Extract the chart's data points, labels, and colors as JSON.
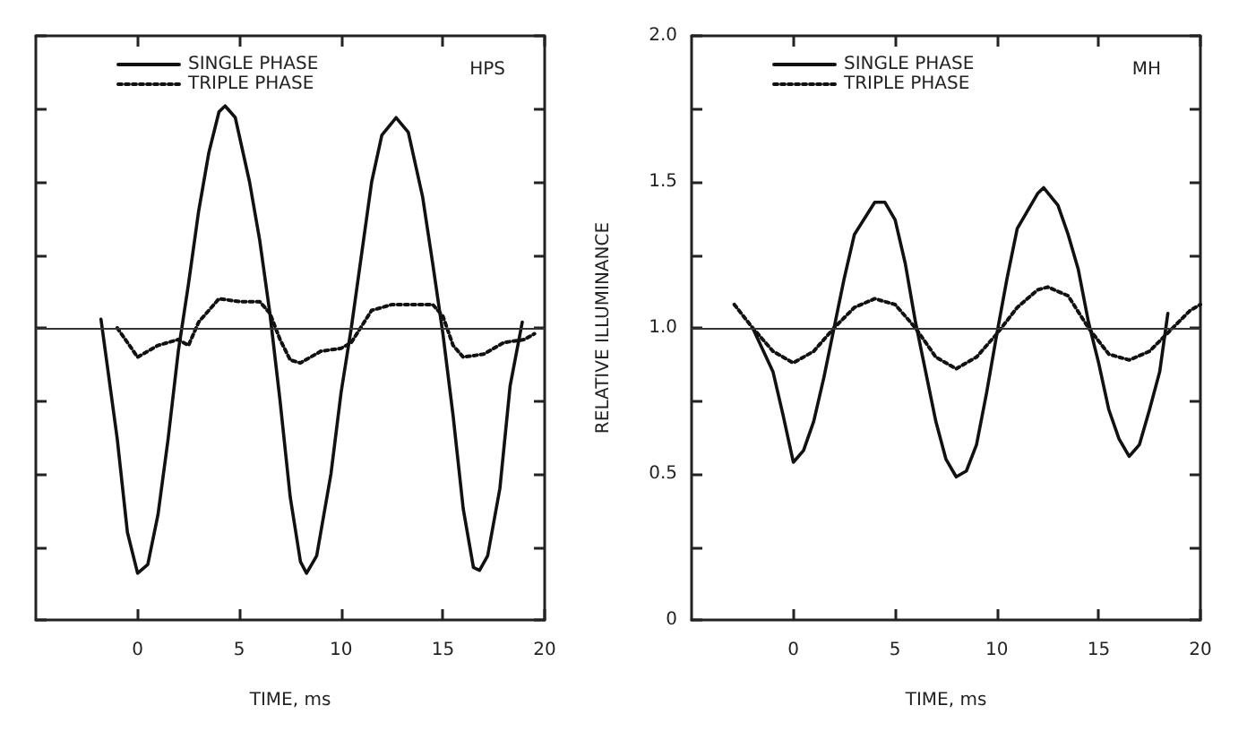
{
  "chart_data": [
    {
      "type": "line",
      "xlabel": "TIME, ms",
      "annotations": [
        "HPS"
      ],
      "xlim": [
        -5,
        20
      ],
      "xticks": [
        0,
        5,
        10,
        15,
        20
      ],
      "ylim": [
        0,
        2
      ],
      "yticks": [
        {
          "value": 0,
          "label": null
        },
        {
          "value": 0.25,
          "label": null
        },
        {
          "value": 0.5,
          "label": null
        },
        {
          "value": 0.75,
          "label": null
        },
        {
          "value": 1,
          "label": null
        },
        {
          "value": 1.25,
          "label": null
        },
        {
          "value": 1.5,
          "label": null
        },
        {
          "value": 1.75,
          "label": null
        },
        {
          "value": 2,
          "label": null
        }
      ],
      "tick_labels": "x",
      "grid": false,
      "legend": "top left",
      "marker": "none",
      "ref_lines": [
        {
          "axis": "y",
          "value": 1,
          "color": "#333333"
        }
      ],
      "series": [
        {
          "name": "SINGLE PHASE",
          "color": "#111111",
          "line_style": "solid",
          "x": [
            -1.8,
            -1,
            -0.5,
            0,
            0.5,
            1,
            1.5,
            2,
            2.5,
            3,
            3.5,
            4,
            4.3,
            4.8,
            5.5,
            6,
            6.5,
            7,
            7.5,
            8,
            8.3,
            8.8,
            9.5,
            10,
            10.5,
            11,
            11.5,
            12,
            12.7,
            13.3,
            14,
            14.5,
            15,
            15.5,
            16,
            16.5,
            16.8,
            17.2,
            17.8,
            18.3,
            18.9
          ],
          "values": [
            1.03,
            0.62,
            0.3,
            0.16,
            0.19,
            0.36,
            0.62,
            0.92,
            1.15,
            1.4,
            1.6,
            1.74,
            1.76,
            1.72,
            1.5,
            1.3,
            1.05,
            0.75,
            0.42,
            0.2,
            0.16,
            0.22,
            0.5,
            0.78,
            1.0,
            1.25,
            1.5,
            1.66,
            1.72,
            1.67,
            1.45,
            1.22,
            0.98,
            0.7,
            0.38,
            0.18,
            0.17,
            0.22,
            0.45,
            0.8,
            1.02
          ]
        },
        {
          "name": "TRIPLE PHASE",
          "color": "#111111",
          "line_style": "dotted",
          "x": [
            -1,
            0,
            1,
            2,
            2.5,
            3,
            4,
            5,
            6,
            6.5,
            7,
            7.5,
            8,
            9,
            10,
            10.5,
            11.5,
            12.5,
            13.5,
            14.5,
            15,
            15.5,
            16,
            17,
            18,
            19,
            19.5
          ],
          "values": [
            1.0,
            0.9,
            0.94,
            0.96,
            0.94,
            1.02,
            1.1,
            1.09,
            1.09,
            1.05,
            0.96,
            0.89,
            0.88,
            0.92,
            0.93,
            0.95,
            1.06,
            1.08,
            1.08,
            1.08,
            1.04,
            0.94,
            0.9,
            0.91,
            0.95,
            0.96,
            0.98
          ]
        }
      ]
    },
    {
      "type": "line",
      "xlabel": "TIME, ms",
      "ylabel": "RELATIVE ILLUMINANCE",
      "annotations": [
        "MH"
      ],
      "xlim": [
        -5,
        20
      ],
      "xticks": [
        0,
        5,
        10,
        15,
        20
      ],
      "ylim": [
        0,
        2
      ],
      "yticks": [
        0,
        {
          "value": 0.25,
          "label": null
        },
        0.5,
        {
          "value": 0.75,
          "label": null
        },
        {
          "value": 1,
          "label": "1.0"
        },
        {
          "value": 1.25,
          "label": null
        },
        1.5,
        {
          "value": 1.75,
          "label": null
        },
        {
          "value": 2,
          "label": "2.0"
        }
      ],
      "grid": false,
      "legend": "top left",
      "marker": "none",
      "ref_lines": [
        {
          "axis": "y",
          "value": 1,
          "color": "#333333"
        }
      ],
      "series": [
        {
          "name": "SINGLE PHASE",
          "color": "#111111",
          "line_style": "solid",
          "x": [
            -2,
            -1,
            -0.5,
            0,
            0.5,
            1,
            1.5,
            2,
            2.5,
            3,
            4,
            4.5,
            5,
            5.5,
            6,
            6.5,
            7,
            7.5,
            8,
            8.5,
            9,
            9.5,
            10,
            10.5,
            11,
            12,
            12.3,
            13,
            13.5,
            14,
            14.5,
            15,
            15.5,
            16,
            16.5,
            17,
            17.5,
            18,
            18.4
          ],
          "values": [
            1.0,
            0.85,
            0.7,
            0.54,
            0.58,
            0.68,
            0.83,
            1.0,
            1.17,
            1.32,
            1.43,
            1.43,
            1.37,
            1.22,
            1.02,
            0.85,
            0.68,
            0.55,
            0.49,
            0.51,
            0.6,
            0.78,
            0.98,
            1.17,
            1.34,
            1.46,
            1.48,
            1.42,
            1.32,
            1.2,
            1.02,
            0.88,
            0.72,
            0.62,
            0.56,
            0.6,
            0.72,
            0.85,
            1.05
          ]
        },
        {
          "name": "TRIPLE PHASE",
          "color": "#111111",
          "line_style": "dotted",
          "x": [
            -2.9,
            -2,
            -1,
            0,
            1,
            2,
            3,
            4,
            5,
            6,
            7,
            8,
            9,
            10,
            11,
            12,
            12.5,
            13.5,
            14.5,
            15.5,
            16.5,
            17.5,
            18.5,
            19.5,
            20
          ],
          "values": [
            1.08,
            1.0,
            0.92,
            0.88,
            0.92,
            1.0,
            1.07,
            1.1,
            1.08,
            1.0,
            0.9,
            0.86,
            0.9,
            0.98,
            1.07,
            1.13,
            1.14,
            1.11,
            1.0,
            0.91,
            0.89,
            0.92,
            0.99,
            1.06,
            1.08
          ]
        }
      ]
    }
  ]
}
